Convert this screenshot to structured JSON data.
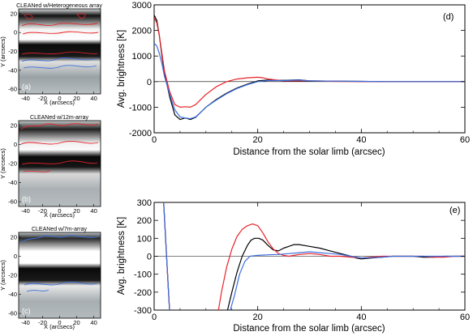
{
  "colors": {
    "black": "#000000",
    "red": "#e8232a",
    "blue": "#3b6fe0"
  },
  "images": [
    {
      "title": "CLEANed w/Heterogeneous array",
      "letter": "(a)",
      "xlabel": "X (arcsecs)",
      "ylabel": "Y (arcsecs)",
      "xticks": [
        "-40",
        "-20",
        "0",
        "20",
        "40"
      ],
      "yticks": [
        "20",
        "0",
        "-20",
        "-40",
        "-60"
      ],
      "contours": [
        "red",
        "blue"
      ]
    },
    {
      "title": "CLEANed w/12m-array",
      "letter": "(b)",
      "xlabel": "X (arcsecs)",
      "ylabel": "Y (arcsecs)",
      "xticks": [
        "-40",
        "-20",
        "0",
        "20",
        "40"
      ],
      "yticks": [
        "20",
        "0",
        "-20",
        "-40",
        "-60"
      ],
      "contours": [
        "red"
      ]
    },
    {
      "title": "CLEANed w/7m-array",
      "letter": "(c)",
      "xlabel": "X (arcsecs)",
      "ylabel": "Y (arcsecs)",
      "xticks": [
        "-40",
        "-20",
        "0",
        "20",
        "40"
      ],
      "yticks": [
        "20",
        "0",
        "-20",
        "-40",
        "-60"
      ],
      "contours": [
        "blue"
      ]
    }
  ],
  "chart_data": [
    {
      "type": "line",
      "letter": "(d)",
      "xlabel": "Distance from the solar limb (arcsec)",
      "ylabel": "Avg. brightness [K]",
      "xlim": [
        0,
        60
      ],
      "ylim": [
        -2000,
        3000
      ],
      "xticks": [
        "0",
        "20",
        "40",
        "60"
      ],
      "yticks": [
        "-2000",
        "-1000",
        "0",
        "1000",
        "2000",
        "3000"
      ],
      "series": [
        {
          "color": "black",
          "x": [
            0,
            0.5,
            1,
            1.5,
            2,
            3,
            4,
            5,
            6,
            7,
            8,
            9,
            10,
            12,
            14,
            16,
            18,
            20,
            22,
            25,
            28,
            30,
            35,
            40,
            45,
            50,
            60
          ],
          "y": [
            2600,
            2400,
            1800,
            1000,
            300,
            -600,
            -1300,
            -1480,
            -1420,
            -1480,
            -1400,
            -1200,
            -1000,
            -700,
            -450,
            -250,
            -100,
            30,
            60,
            50,
            70,
            30,
            20,
            10,
            0,
            0,
            0
          ]
        },
        {
          "color": "red",
          "x": [
            0,
            0.5,
            1,
            1.5,
            2,
            3,
            4,
            5,
            6,
            7,
            8,
            9,
            10,
            12,
            14,
            16,
            18,
            20,
            21,
            22,
            25,
            28,
            30,
            35,
            40,
            45,
            50,
            60
          ],
          "y": [
            2500,
            2300,
            1800,
            1100,
            400,
            -400,
            -900,
            -1000,
            -980,
            -1000,
            -900,
            -700,
            -500,
            -200,
            0,
            100,
            150,
            170,
            150,
            100,
            30,
            30,
            30,
            10,
            0,
            0,
            0,
            0
          ]
        },
        {
          "color": "blue",
          "x": [
            0,
            0.5,
            1,
            1.5,
            2,
            3,
            4,
            5,
            6,
            7,
            8,
            9,
            10,
            12,
            14,
            16,
            18,
            20,
            22,
            25,
            28,
            30,
            35,
            40,
            45,
            50,
            60
          ],
          "y": [
            1500,
            1400,
            1100,
            700,
            200,
            -500,
            -1100,
            -1380,
            -1420,
            -1450,
            -1380,
            -1200,
            -1000,
            -720,
            -470,
            -270,
            -120,
            0,
            40,
            40,
            60,
            30,
            20,
            10,
            0,
            0,
            0
          ]
        }
      ]
    },
    {
      "type": "line",
      "letter": "(e)",
      "xlabel": "Distance from the solar limb (arcsec)",
      "ylabel": "Avg. brightness [K]",
      "xlim": [
        0,
        60
      ],
      "ylim": [
        -300,
        300
      ],
      "xticks": [
        "0",
        "20",
        "40",
        "60"
      ],
      "yticks": [
        "-300",
        "-200",
        "-100",
        "0",
        "100",
        "200",
        "300"
      ],
      "series": [
        {
          "color": "black",
          "x": [
            1.8,
            2.4,
            3.0,
            14,
            15,
            16,
            17,
            18,
            18.7,
            19.4,
            20.2,
            21,
            22,
            23,
            24,
            25,
            26,
            27,
            28,
            29,
            30,
            32,
            34,
            36,
            38,
            39,
            40,
            42,
            44,
            46,
            48,
            50,
            52,
            54,
            56,
            58,
            60
          ],
          "y": [
            320,
            0,
            -320,
            -320,
            -200,
            -90,
            0,
            60,
            90,
            100,
            100,
            90,
            60,
            35,
            30,
            45,
            55,
            65,
            65,
            60,
            55,
            45,
            30,
            15,
            0,
            -10,
            -15,
            -10,
            -5,
            0,
            0,
            0,
            -5,
            -5,
            0,
            0,
            0
          ]
        },
        {
          "color": "red",
          "x": [
            1.8,
            2.4,
            3.0,
            12.3,
            13,
            14,
            15,
            16,
            17,
            18,
            19,
            20,
            21,
            22,
            23,
            24,
            25,
            26,
            27,
            28,
            30,
            32,
            34,
            36,
            38,
            40,
            42,
            44,
            46,
            48,
            50,
            52,
            54,
            56,
            58,
            60
          ],
          "y": [
            320,
            0,
            -320,
            -320,
            -200,
            -60,
            40,
            110,
            150,
            170,
            180,
            170,
            130,
            80,
            40,
            15,
            5,
            0,
            5,
            10,
            15,
            10,
            0,
            0,
            -5,
            -10,
            -5,
            0,
            0,
            0,
            0,
            0,
            -5,
            -5,
            0,
            0
          ]
        },
        {
          "color": "blue",
          "x": [
            1.8,
            2.4,
            3.0,
            14.5,
            15.5,
            16.5,
            17.5,
            18.5,
            20,
            22,
            24,
            26,
            28,
            30,
            32,
            34,
            36,
            38,
            40,
            42,
            44,
            46,
            48,
            50,
            52,
            54,
            56,
            58,
            60
          ],
          "y": [
            320,
            0,
            -320,
            -320,
            -220,
            -100,
            -30,
            0,
            5,
            8,
            10,
            15,
            20,
            25,
            20,
            15,
            10,
            0,
            -10,
            -8,
            -5,
            0,
            0,
            0,
            0,
            0,
            0,
            0,
            0
          ]
        }
      ]
    }
  ]
}
